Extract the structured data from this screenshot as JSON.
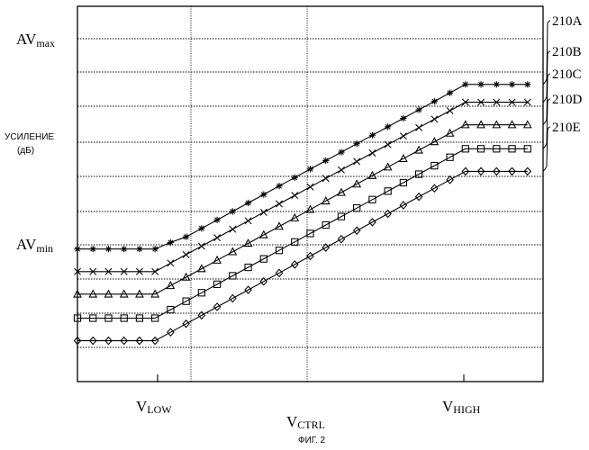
{
  "chart_data": {
    "type": "line",
    "title": "",
    "xlabel": "V",
    "xlabel_sub": "CTRL",
    "ylabel_line1": "УСИЛЕНИЕ",
    "ylabel_line2": "(дБ)",
    "y_tick_labels": [
      {
        "main": "AV",
        "sub": "max",
        "value": 10.0
      },
      {
        "main": "AV",
        "sub": "min",
        "value": 4.0
      }
    ],
    "x_tick_labels": [
      {
        "main": "V",
        "sub": "LOW",
        "value": 1.0
      },
      {
        "main": "V",
        "sub": "HIGH",
        "value": 5.0
      }
    ],
    "xlim": [
      0,
      6
    ],
    "ylim": [
      0,
      11
    ],
    "grid": true,
    "series": [
      {
        "name": "210A",
        "marker": "asterisk",
        "x": [
          0.0,
          0.2,
          0.4,
          0.6,
          0.8,
          1.0,
          1.2,
          1.4,
          1.6,
          1.8,
          2.0,
          2.2,
          2.4,
          2.6,
          2.8,
          3.0,
          3.2,
          3.4,
          3.6,
          3.8,
          4.0,
          4.2,
          4.4,
          4.6,
          4.8,
          5.0,
          5.2,
          5.4,
          5.6,
          5.8
        ],
        "y": [
          3.55,
          3.55,
          3.55,
          3.55,
          3.55,
          3.55,
          3.78,
          3.98,
          4.28,
          4.58,
          4.88,
          5.18,
          5.48,
          5.78,
          6.08,
          6.38,
          6.68,
          6.98,
          7.28,
          7.58,
          7.88,
          8.18,
          8.48,
          8.78,
          9.08,
          9.38,
          9.38,
          9.38,
          9.38,
          9.38
        ]
      },
      {
        "name": "210B",
        "marker": "x",
        "x": [
          0.0,
          0.2,
          0.4,
          0.6,
          0.8,
          1.0,
          1.2,
          1.4,
          1.6,
          1.8,
          2.0,
          2.2,
          2.4,
          2.6,
          2.8,
          3.0,
          3.2,
          3.4,
          3.6,
          3.8,
          4.0,
          4.2,
          4.4,
          4.6,
          4.8,
          5.0,
          5.2,
          5.4,
          5.6,
          5.8
        ],
        "y": [
          2.75,
          2.75,
          2.75,
          2.75,
          2.75,
          2.75,
          3.05,
          3.35,
          3.65,
          3.95,
          4.25,
          4.55,
          4.85,
          5.15,
          5.45,
          5.75,
          6.05,
          6.35,
          6.65,
          6.95,
          7.25,
          7.55,
          7.85,
          8.15,
          8.45,
          8.75,
          8.75,
          8.75,
          8.75,
          8.75
        ]
      },
      {
        "name": "210C",
        "marker": "triangle",
        "x": [
          0.0,
          0.2,
          0.4,
          0.6,
          0.8,
          1.0,
          1.2,
          1.4,
          1.6,
          1.8,
          2.0,
          2.2,
          2.4,
          2.6,
          2.8,
          3.0,
          3.2,
          3.4,
          3.6,
          3.8,
          4.0,
          4.2,
          4.4,
          4.6,
          4.8,
          5.0,
          5.2,
          5.4,
          5.6,
          5.8
        ],
        "y": [
          1.95,
          1.95,
          1.95,
          1.95,
          1.95,
          1.95,
          2.25,
          2.55,
          2.85,
          3.15,
          3.45,
          3.75,
          4.05,
          4.35,
          4.65,
          4.95,
          5.25,
          5.55,
          5.85,
          6.15,
          6.45,
          6.75,
          7.05,
          7.35,
          7.65,
          7.95,
          7.95,
          7.95,
          7.95,
          7.95
        ]
      },
      {
        "name": "210D",
        "marker": "square",
        "x": [
          0.0,
          0.2,
          0.4,
          0.6,
          0.8,
          1.0,
          1.2,
          1.4,
          1.6,
          1.8,
          2.0,
          2.2,
          2.4,
          2.6,
          2.8,
          3.0,
          3.2,
          3.4,
          3.6,
          3.8,
          4.0,
          4.2,
          4.4,
          4.6,
          4.8,
          5.0,
          5.2,
          5.4,
          5.6,
          5.8
        ],
        "y": [
          1.1,
          1.1,
          1.1,
          1.1,
          1.1,
          1.1,
          1.4,
          1.7,
          2.0,
          2.3,
          2.6,
          2.9,
          3.2,
          3.5,
          3.8,
          4.1,
          4.4,
          4.7,
          5.0,
          5.3,
          5.6,
          5.9,
          6.2,
          6.5,
          6.8,
          7.1,
          7.1,
          7.1,
          7.1,
          7.1
        ]
      },
      {
        "name": "210E",
        "marker": "diamond",
        "x": [
          0.0,
          0.2,
          0.4,
          0.6,
          0.8,
          1.0,
          1.2,
          1.4,
          1.6,
          1.8,
          2.0,
          2.2,
          2.4,
          2.6,
          2.8,
          3.0,
          3.2,
          3.4,
          3.6,
          3.8,
          4.0,
          4.2,
          4.4,
          4.6,
          4.8,
          5.0,
          5.2,
          5.4,
          5.6,
          5.8
        ],
        "y": [
          0.3,
          0.3,
          0.3,
          0.3,
          0.3,
          0.3,
          0.6,
          0.9,
          1.2,
          1.5,
          1.8,
          2.1,
          2.4,
          2.7,
          3.0,
          3.3,
          3.6,
          3.9,
          4.2,
          4.5,
          4.8,
          5.1,
          5.4,
          5.7,
          6.0,
          6.3,
          6.3,
          6.3,
          6.3,
          6.3
        ]
      }
    ]
  },
  "caption": "ФИГ. 2"
}
